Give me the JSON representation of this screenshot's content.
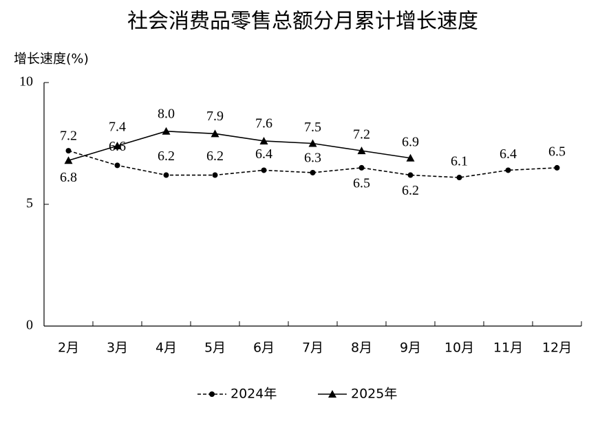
{
  "chart_data": {
    "type": "line",
    "title": "社会消费品零售总额分月累计增长速度",
    "y_label": "增长速度(%)",
    "categories": [
      "2月",
      "3月",
      "4月",
      "5月",
      "6月",
      "7月",
      "8月",
      "9月",
      "10月",
      "11月",
      "12月"
    ],
    "series": [
      {
        "name": "2024年",
        "color": "#000000",
        "dash": true,
        "marker": "circle",
        "values": [
          7.2,
          6.6,
          6.2,
          6.2,
          6.4,
          6.3,
          6.5,
          6.2,
          6.1,
          6.4,
          6.5
        ]
      },
      {
        "name": "2025年",
        "color": "#000000",
        "dash": false,
        "marker": "triangle",
        "values": [
          6.8,
          7.4,
          8.0,
          7.9,
          7.6,
          7.5,
          7.2,
          6.9,
          null,
          null,
          null
        ],
        "value_labels": [
          "6.8",
          "7.4",
          "8.0",
          "7.9",
          "7.6",
          "7.5",
          "7.2",
          "6.9",
          null,
          null,
          null
        ]
      }
    ],
    "ylim": [
      0,
      10
    ],
    "yticks": [
      0,
      5,
      10
    ],
    "legend": "bottom"
  }
}
